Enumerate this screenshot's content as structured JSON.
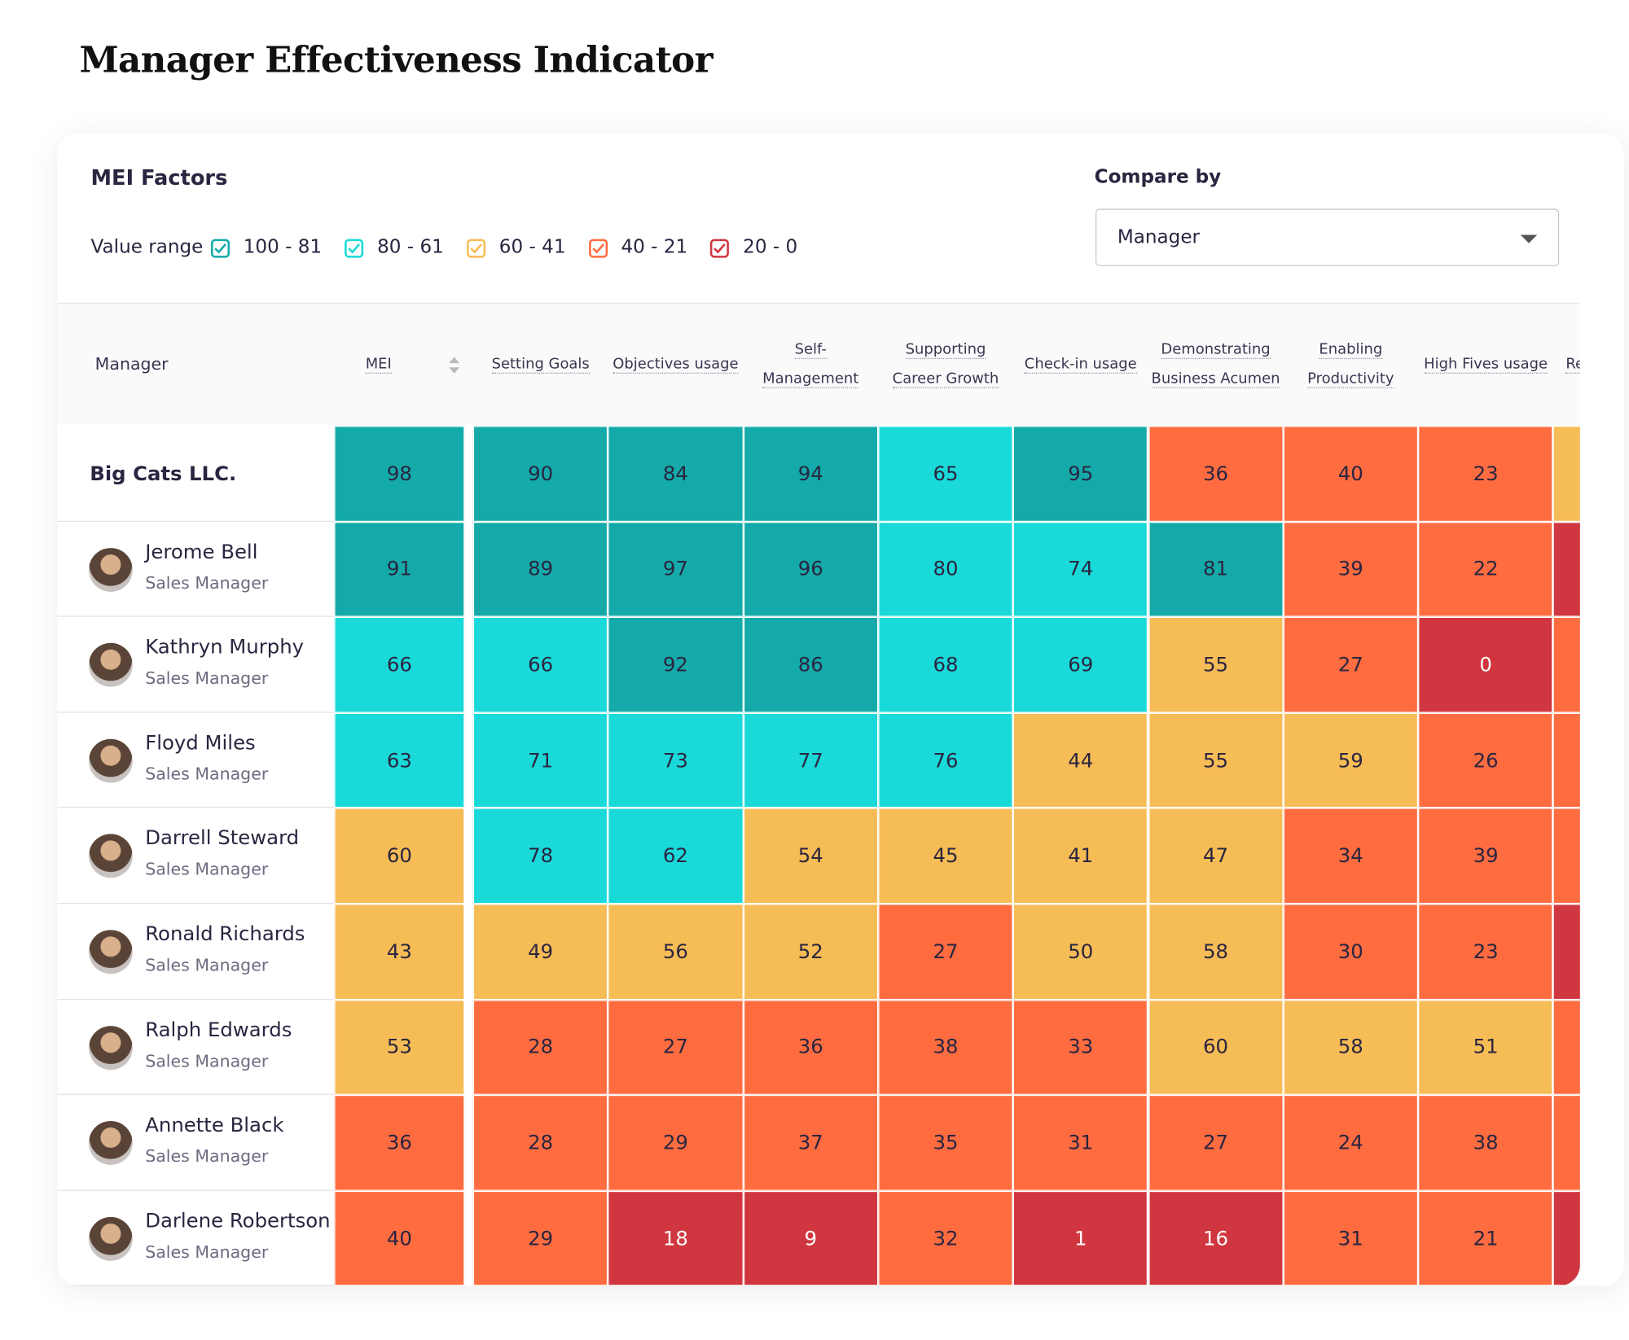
{
  "title": "Manager Effectiveness Indicator",
  "filters": {
    "heading": "MEI Factors",
    "range_label": "Value range",
    "ranges": [
      {
        "label": "100 - 81",
        "min": 81,
        "max": 100,
        "color": "#14aaa9"
      },
      {
        "label": "80 - 61",
        "min": 61,
        "max": 80,
        "color": "#19d9d9"
      },
      {
        "label": "60 - 41",
        "min": 41,
        "max": 60,
        "color": "#f6bc55"
      },
      {
        "label": "40 - 21",
        "min": 21,
        "max": 40,
        "color": "#ff6c40"
      },
      {
        "label": "20 - 0",
        "min": 0,
        "max": 20,
        "color": "#d0363f"
      }
    ],
    "compare_label": "Compare by",
    "compare_value": "Manager"
  },
  "table": {
    "row_header": "Manager",
    "columns": [
      [
        "MEI"
      ],
      [
        "Setting Goals"
      ],
      [
        "Objectives usage"
      ],
      [
        "Self-",
        "Management"
      ],
      [
        "Supporting",
        "Career Growth"
      ],
      [
        "Check-in usage"
      ],
      [
        "Demonstrating",
        "Business Acumen"
      ],
      [
        "Enabling",
        "Productivity"
      ],
      [
        "High Fives usage"
      ]
    ],
    "rows": [
      {
        "name": "Big Cats LLC.",
        "values": [
          98,
          90,
          84,
          94,
          65,
          95,
          36,
          40,
          23
        ]
      },
      {
        "name": "Jerome Bell",
        "role": "Sales Manager",
        "values": [
          91,
          89,
          97,
          96,
          80,
          74,
          81,
          39,
          22
        ]
      },
      {
        "name": "Kathryn Murphy",
        "role": "Sales Manager",
        "values": [
          66,
          66,
          92,
          86,
          68,
          69,
          55,
          27,
          0
        ]
      },
      {
        "name": "Floyd Miles",
        "role": "Sales Manager",
        "values": [
          63,
          71,
          73,
          77,
          76,
          44,
          55,
          59,
          26
        ]
      },
      {
        "name": "Darrell Steward",
        "role": "Sales Manager",
        "values": [
          60,
          78,
          62,
          54,
          45,
          41,
          47,
          34,
          39
        ]
      },
      {
        "name": "Ronald Richards",
        "role": "Sales Manager",
        "values": [
          43,
          49,
          56,
          52,
          27,
          50,
          58,
          30,
          23
        ]
      },
      {
        "name": "Ralph Edwards",
        "role": "Sales Manager",
        "values": [
          53,
          28,
          27,
          36,
          38,
          33,
          60,
          58,
          51
        ]
      },
      {
        "name": "Annette Black",
        "role": "Sales Manager",
        "values": [
          36,
          28,
          29,
          37,
          35,
          31,
          27,
          24,
          38
        ]
      },
      {
        "name": "Darlene Robertson",
        "role": "Sales Manager",
        "values": [
          40,
          29,
          18,
          9,
          32,
          1,
          16,
          31,
          21
        ]
      }
    ],
    "clipped_column": {
      "header": "Rev",
      "colors": [
        "#f6bc55",
        "#d0363f",
        "#ff6c40",
        "#ff6c40",
        "#ff6c40",
        "#d0363f",
        "#ff6c40",
        "#ff6c40",
        "#d0363f"
      ]
    }
  }
}
